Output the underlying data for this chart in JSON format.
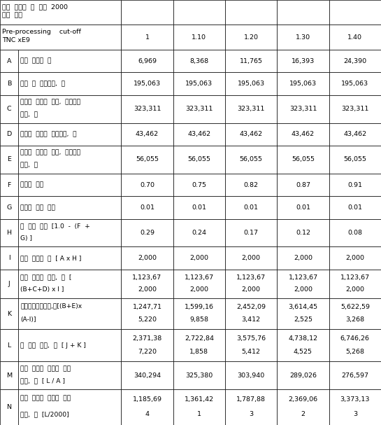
{
  "header_row1_desc": "보관  재대혈  수  연간  2000\n유닛  목표",
  "header_row2_desc": "Pre-processing    cut-off\nTNC xE9",
  "header_row2_vals": [
    "1",
    "1.10",
    "1.20",
    "1.30",
    "1.40"
  ],
  "rows": [
    {
      "label": "A",
      "desc": "기증  재대혈  수",
      "values": [
        "6,969",
        "8,368",
        "11,765",
        "16,393",
        "24,390"
      ]
    },
    {
      "label": "B",
      "desc": "모집  및  수거비용,  원",
      "values": [
        "195,063",
        "195,063",
        "195,063",
        "195,063",
        "195,063"
      ]
    },
    {
      "label": "C",
      "desc": "이식용  재대혈  검사,  추후관리\n비용,  원",
      "values": [
        "323,311",
        "323,311",
        "323,311",
        "323,311",
        "323,311"
      ]
    },
    {
      "label": "D",
      "desc": "이식용  재대혈  보관비용,  원",
      "values": [
        "43,462",
        "43,462",
        "43,462",
        "43,462",
        "43,462"
      ]
    },
    {
      "label": "E",
      "desc": "부적합  재대혈  검사,  추후관리\n비용,  원",
      "values": [
        "56,055",
        "56,055",
        "56,055",
        "56,055",
        "56,055"
      ]
    },
    {
      "label": "F",
      "desc": "부적합  비율",
      "values": [
        "0.70",
        "0.75",
        "0.82",
        "0.87",
        "0.91"
      ]
    },
    {
      "label": "G",
      "desc": "이식용  사용  비율",
      "values": [
        "0.01",
        "0.01",
        "0.01",
        "0.01",
        "0.01"
      ]
    },
    {
      "label": "H",
      "desc": "점  보관  비율  [1.0  -  (F  +\nG) ]",
      "values": [
        "0.29",
        "0.24",
        "0.17",
        "0.12",
        "0.08"
      ]
    },
    {
      "label": "I",
      "desc": "보관  재대혈  수  [ A x H ]",
      "values": [
        "2,000",
        "2,000",
        "2,000",
        "2,000",
        "2,000"
      ]
    },
    {
      "label": "J",
      "desc": "보관  재대혈  비용,  원  [\n(B+C+D) x I ]",
      "values": [
        "1,123,67\n2,000",
        "1,123,67\n2,000",
        "1,123,67\n2,000",
        "1,123,67\n2,000",
        "1,123,67\n2,000"
      ]
    },
    {
      "label": "K",
      "desc": "부적합재대혈비용,원[(B+E)x\n(A-I)]",
      "values": [
        "1,247,71\n5,220",
        "1,599,16\n9,858",
        "2,452,09\n3,412",
        "3,614,45\n2,525",
        "5,622,59\n3,268"
      ]
    },
    {
      "label": "L",
      "desc": "점  소요  비용,  원  [ J + K ]",
      "values": [
        "2,371,38\n7,220",
        "2,722,84\n1,858",
        "3,575,76\n5,412",
        "4,738,12\n4,525",
        "6,746,26\n5,268"
      ]
    },
    {
      "label": "M",
      "desc": "기증  재대혈  단위당  소요\n비용,  원  [ L / A ]",
      "values": [
        "340,294",
        "325,380",
        "303,940",
        "289,026",
        "276,597"
      ]
    },
    {
      "label": "N",
      "desc": "보관  재대혈  단위당  소요\n비용,  원  [L/2000]",
      "values": [
        "1,185,69\n4",
        "1,361,42\n1",
        "1,787,88\n3",
        "2,369,06\n2",
        "3,373,13\n3"
      ]
    }
  ],
  "bg_color": "#ffffff",
  "font_size": 6.8
}
